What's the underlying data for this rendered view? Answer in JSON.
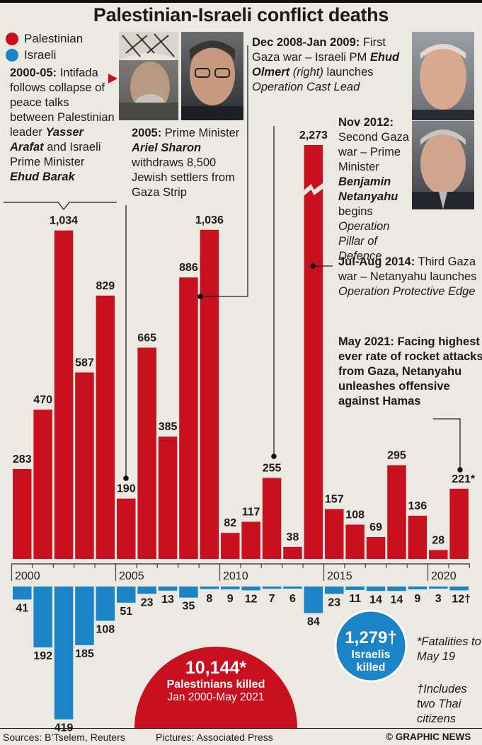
{
  "title": "Palestinian-Israeli conflict deaths",
  "legend": [
    {
      "label": "Palestinian",
      "color": "#c8101e"
    },
    {
      "label": "Israeli",
      "color": "#1b84c7"
    }
  ],
  "annotations": {
    "intifada": {
      "head": "2000-05:",
      "text1": "Intifada follows collapse of peace talks between Palestinian leader ",
      "name1": "Yasser Arafat",
      "text2": " and Israeli Prime Minister ",
      "name2": "Ehud Barak"
    },
    "sharon": {
      "head": "2005:",
      "text1": " Prime Minister ",
      "name1": "Ariel Sharon",
      "text2": " withdraws 8,500 Jewish settlers from Gaza Strip"
    },
    "cast_lead": {
      "head": "Dec 2008-Jan 2009:",
      "text1": " First Gaza war – Israeli PM ",
      "name1": "Ehud Olmert",
      "paren": " (right)",
      "text2": " launches ",
      "op": "Operation Cast Lead"
    },
    "pillar": {
      "head": "Nov 2012:",
      "text1": " Second Gaza war – Prime Minister ",
      "name1": "Benjamin Netanyahu",
      "text2": " begins ",
      "op": "Operation Pillar of Defence"
    },
    "protective": {
      "head": "Jul-Aug 2014:",
      "text1": " Third Gaza war – Netanyahu launches ",
      "op": "Operation Protective Edge"
    },
    "may2021": {
      "text": "May 2021: Facing highest ever rate of rocket attacks from Gaza, Netanyahu unleashes offensive against Hamas"
    }
  },
  "photos": [
    "Yasser Arafat",
    "Ehud Barak",
    "Ehud Olmert",
    "Benjamin Netanyahu"
  ],
  "chart_data": {
    "type": "bar",
    "title": "Palestinian-Israeli conflict deaths",
    "categories": [
      2000,
      2001,
      2002,
      2003,
      2004,
      2005,
      2006,
      2007,
      2008,
      2009,
      2010,
      2011,
      2012,
      2013,
      2014,
      2015,
      2016,
      2017,
      2018,
      2019,
      2020,
      2021
    ],
    "tick_labels": [
      "2000",
      "2005",
      "2010",
      "2015",
      "2020"
    ],
    "series": [
      {
        "name": "Palestinian",
        "values": [
          283,
          470,
          1034,
          587,
          829,
          190,
          665,
          385,
          886,
          1036,
          82,
          117,
          255,
          38,
          2273,
          157,
          108,
          69,
          295,
          136,
          28,
          221
        ],
        "labels": [
          "283",
          "470",
          "1,034",
          "587",
          "829",
          "190",
          "665",
          "385",
          "886",
          "1,036",
          "82",
          "117",
          "255",
          "38",
          "2,273",
          "157",
          "108",
          "69",
          "295",
          "136",
          "28",
          "221*"
        ]
      },
      {
        "name": "Israeli",
        "values": [
          41,
          192,
          419,
          185,
          108,
          51,
          23,
          13,
          35,
          8,
          9,
          12,
          7,
          6,
          84,
          23,
          11,
          14,
          14,
          9,
          3,
          12
        ],
        "labels": [
          "41",
          "192",
          "419",
          "185",
          "108",
          "51",
          "23",
          "13",
          "35",
          "8",
          "9",
          "12",
          "7",
          "6",
          "84",
          "23",
          "11",
          "14",
          "14",
          "9",
          "3",
          "12†"
        ]
      }
    ],
    "axis_break": "2014 Palestinian bar truncated (broken axis)"
  },
  "totals": {
    "palestinian_value": "10,144*",
    "palestinian_label": "Palestinians killed",
    "palestinian_range": "Jan 2000-May 2021",
    "israeli_value": "1,279†",
    "israeli_label1": "Israelis",
    "israeli_label2": "killed"
  },
  "footnotes": {
    "fatalities": "*Fatalities to May 19",
    "thai": "†Includes two Thai citizens"
  },
  "footer": {
    "sources": "Sources: B’Tselem, Reuters",
    "pictures": "Pictures: Associated Press",
    "credit": "© GRAPHIC NEWS"
  }
}
